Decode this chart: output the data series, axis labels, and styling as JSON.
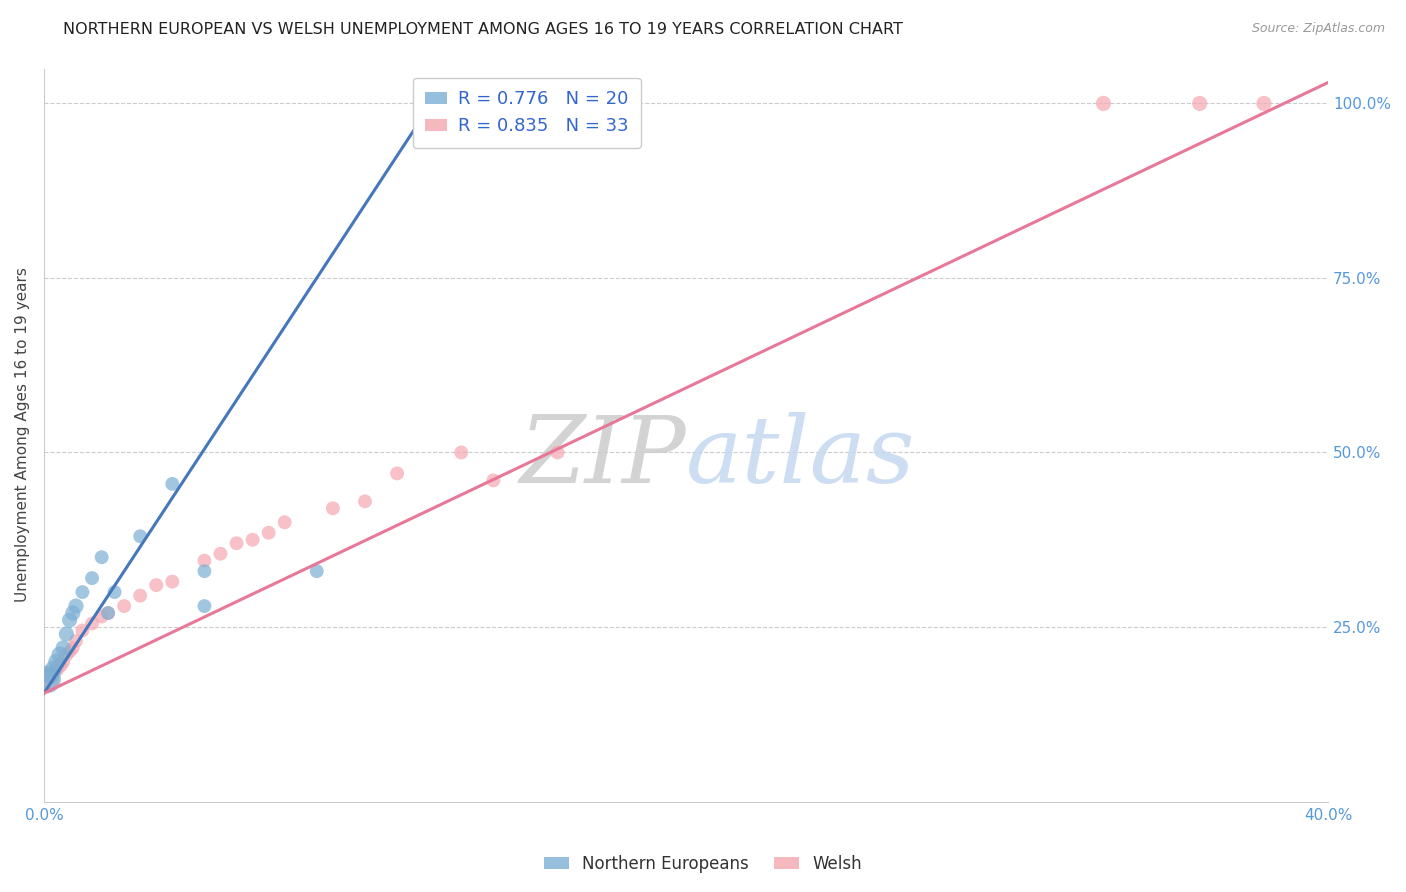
{
  "title": "NORTHERN EUROPEAN VS WELSH UNEMPLOYMENT AMONG AGES 16 TO 19 YEARS CORRELATION CHART",
  "source": "Source: ZipAtlas.com",
  "ylabel": "Unemployment Among Ages 16 to 19 years",
  "blue_label": "Northern Europeans",
  "pink_label": "Welsh",
  "blue_R": 0.776,
  "blue_N": 20,
  "pink_R": 0.835,
  "pink_N": 33,
  "xlim": [
    0.0,
    0.4
  ],
  "ylim": [
    0.0,
    1.05
  ],
  "xtick_positions": [
    0.0,
    0.4
  ],
  "xtick_labels": [
    "0.0%",
    "40.0%"
  ],
  "yticks_right": [
    0.25,
    0.5,
    0.75,
    1.0
  ],
  "ytick_labels_right": [
    "25.0%",
    "50.0%",
    "75.0%",
    "100.0%"
  ],
  "blue_color": "#7BAFD4",
  "pink_color": "#F4A7B0",
  "blue_line_color": "#4477BB",
  "pink_line_color": "#E87898",
  "watermark_zip": "ZIP",
  "watermark_atlas": "atlas",
  "blue_scatter_x": [
    0.001,
    0.002,
    0.003,
    0.004,
    0.005,
    0.006,
    0.007,
    0.008,
    0.009,
    0.01,
    0.012,
    0.015,
    0.018,
    0.02,
    0.022,
    0.03,
    0.04,
    0.05,
    0.05,
    0.085
  ],
  "blue_scatter_y": [
    0.175,
    0.18,
    0.19,
    0.2,
    0.21,
    0.22,
    0.24,
    0.26,
    0.27,
    0.28,
    0.3,
    0.32,
    0.35,
    0.27,
    0.3,
    0.38,
    0.455,
    0.33,
    0.28,
    0.33
  ],
  "blue_scatter_sizes": [
    400,
    150,
    150,
    150,
    150,
    120,
    120,
    120,
    120,
    120,
    100,
    100,
    100,
    100,
    100,
    100,
    100,
    100,
    100,
    100
  ],
  "blue_line_x0": 0.0,
  "blue_line_y0": 0.155,
  "blue_line_x1": 0.125,
  "blue_line_y1": 1.03,
  "pink_scatter_x": [
    0.001,
    0.002,
    0.003,
    0.004,
    0.005,
    0.006,
    0.007,
    0.008,
    0.009,
    0.01,
    0.012,
    0.015,
    0.018,
    0.02,
    0.025,
    0.03,
    0.035,
    0.04,
    0.05,
    0.055,
    0.06,
    0.065,
    0.07,
    0.075,
    0.09,
    0.1,
    0.11,
    0.13,
    0.14,
    0.16,
    0.33,
    0.36,
    0.38
  ],
  "pink_scatter_y": [
    0.175,
    0.18,
    0.185,
    0.19,
    0.195,
    0.2,
    0.21,
    0.215,
    0.22,
    0.23,
    0.245,
    0.255,
    0.265,
    0.27,
    0.28,
    0.295,
    0.31,
    0.315,
    0.345,
    0.355,
    0.37,
    0.375,
    0.385,
    0.4,
    0.42,
    0.43,
    0.47,
    0.5,
    0.46,
    0.5,
    1.0,
    1.0,
    1.0
  ],
  "pink_scatter_sizes": [
    300,
    120,
    120,
    120,
    120,
    100,
    100,
    100,
    100,
    100,
    100,
    100,
    100,
    100,
    100,
    100,
    100,
    100,
    100,
    100,
    100,
    100,
    100,
    100,
    100,
    100,
    100,
    100,
    100,
    100,
    120,
    120,
    120
  ],
  "pink_line_x0": 0.0,
  "pink_line_y0": 0.155,
  "pink_line_x1": 0.4,
  "pink_line_y1": 1.03
}
